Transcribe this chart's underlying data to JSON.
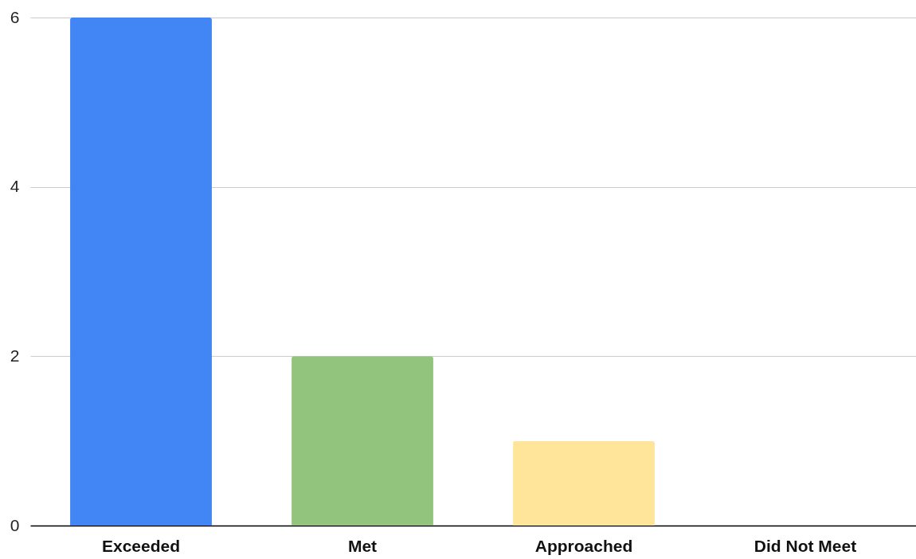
{
  "chart_data": {
    "type": "bar",
    "categories": [
      "Exceeded",
      "Met",
      "Approached",
      "Did Not Meet"
    ],
    "values": [
      6,
      2,
      1,
      0
    ],
    "colors": [
      "#4285f4",
      "#93c47d",
      "#ffe599",
      "#e06666"
    ],
    "ylim": [
      0,
      6
    ],
    "yticks": [
      0,
      2,
      4,
      6
    ],
    "grid": "y"
  }
}
